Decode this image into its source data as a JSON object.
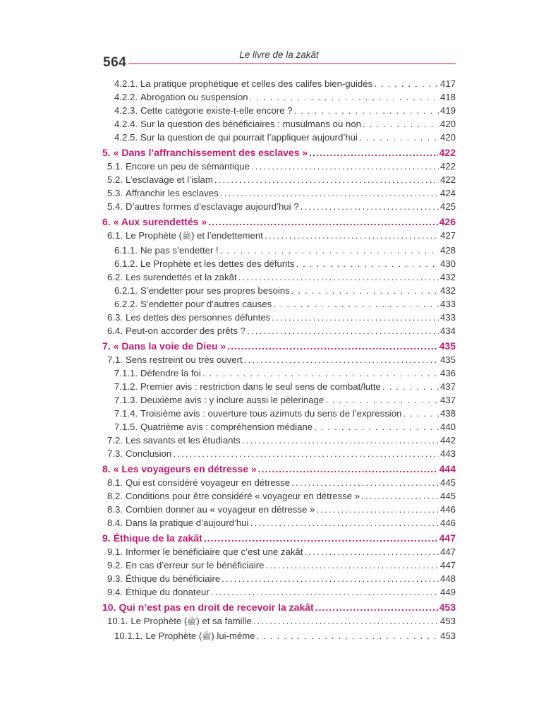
{
  "page": {
    "folio": "564",
    "running_title": "Le livre de la zakât"
  },
  "colors": {
    "accent_pink": "#bf1b70",
    "rule_pink": "#ee86b4",
    "text_dark": "#383838",
    "background": "#ffffff"
  },
  "toc": {
    "entries": [
      {
        "level": 3,
        "number": "4.2.1.",
        "label": "La pratique prophétique et celles des califes bien-guidés",
        "page": "417"
      },
      {
        "level": 3,
        "number": "4.2.2.",
        "label": "Abrogation ou suspension",
        "page": "418"
      },
      {
        "level": 3,
        "number": "4.2.3.",
        "label": "Cette catégorie existe-t-elle encore ?",
        "page": "419"
      },
      {
        "level": 3,
        "number": "4.2.4.",
        "label": "Sur la question des bénéficiaires : musulmans ou non",
        "page": "420"
      },
      {
        "level": 3,
        "number": "4.2.5.",
        "label": "Sur la question de qui pourrait l’appliquer aujourd’hui",
        "page": "420"
      },
      {
        "level": 1,
        "number": "5.",
        "label": "« Dans l’affranchissement des esclaves »",
        "page": "422"
      },
      {
        "level": 2,
        "number": "5.1.",
        "label": "Encore un peu de sémantique",
        "page": "422"
      },
      {
        "level": 2,
        "number": "5.2.",
        "label": "L’esclavage et l’islam",
        "page": "422"
      },
      {
        "level": 2,
        "number": "5.3.",
        "label": "Affranchir les esclaves",
        "page": "424"
      },
      {
        "level": 2,
        "number": "5.4.",
        "label": "D’autres formes d’esclavage aujourd’hui ?",
        "page": "425"
      },
      {
        "level": 1,
        "number": "6.",
        "label": "« Aux surendettés »",
        "page": "426"
      },
      {
        "level": 2,
        "number": "6.1.",
        "label": "Le Prophète (ﷺ) et l’endettement",
        "page": "427"
      },
      {
        "level": 3,
        "number": "6.1.1.",
        "label": "Ne pas s’endetter !",
        "page": "428"
      },
      {
        "level": 3,
        "number": "6.1.2.",
        "label": "Le Prophète et les dettes des défunts",
        "page": "430"
      },
      {
        "level": 2,
        "number": "6.2.",
        "label": "Les surendettés et la zakât",
        "page": "432"
      },
      {
        "level": 3,
        "number": "6.2.1.",
        "label": "S’endetter pour ses propres besoins",
        "page": "432"
      },
      {
        "level": 3,
        "number": "6.2.2.",
        "label": "S’endetter pour d’autres causes",
        "page": "433"
      },
      {
        "level": 2,
        "number": "6.3.",
        "label": "Les dettes des personnes défuntes",
        "page": "433"
      },
      {
        "level": 2,
        "number": "6.4.",
        "label": "Peut-on accorder des prêts ?",
        "page": "434"
      },
      {
        "level": 1,
        "number": "7.",
        "label": "« Dans la voie de Dieu »",
        "page": "435"
      },
      {
        "level": 2,
        "number": "7.1.",
        "label": "Sens restreint ou très ouvert",
        "page": "435"
      },
      {
        "level": 3,
        "number": "7.1.1.",
        "label": "Défendre la foi",
        "page": "436"
      },
      {
        "level": 3,
        "number": "7.1.2.",
        "label": "Premier avis : restriction dans le seul sens de combat/lutte",
        "page": "437"
      },
      {
        "level": 3,
        "number": "7.1.3.",
        "label": "Deuxième avis : y inclure aussi le pèlerinage",
        "page": "437"
      },
      {
        "level": 3,
        "number": "7.1.4.",
        "label": "Troisième avis : ouverture tous azimuts du sens de l’expression",
        "page": "438"
      },
      {
        "level": 3,
        "number": "7.1.5.",
        "label": "Quatrième avis : compréhension médiane",
        "page": "440"
      },
      {
        "level": 2,
        "number": "7.2.",
        "label": "Les savants et les étudiants",
        "page": "442"
      },
      {
        "level": 2,
        "number": "7.3.",
        "label": "Conclusion",
        "page": "443"
      },
      {
        "level": 1,
        "number": "8.",
        "label": "« Les voyageurs en détresse »",
        "page": "444"
      },
      {
        "level": 2,
        "number": "8.1.",
        "label": "Qui est considéré voyageur en détresse",
        "page": "445"
      },
      {
        "level": 2,
        "number": "8.2.",
        "label": "Conditions pour être considéré « voyageur en détresse »",
        "page": "445"
      },
      {
        "level": 2,
        "number": "8.3.",
        "label": "Combien donner au « voyageur en détresse »",
        "page": "446"
      },
      {
        "level": 2,
        "number": "8.4.",
        "label": "Dans la pratique d’aujourd’hui",
        "page": "446"
      },
      {
        "level": 1,
        "number": "9.",
        "label": "Éthique de la zakât",
        "page": "447"
      },
      {
        "level": 2,
        "number": "9.1.",
        "label": "Informer le bénéficiaire que c’est une zakât",
        "page": "447"
      },
      {
        "level": 2,
        "number": "9.2.",
        "label": "En cas d’erreur sur le bénéficiaire",
        "page": "447"
      },
      {
        "level": 2,
        "number": "9.3.",
        "label": "Éthique du bénéficiaire",
        "page": "448"
      },
      {
        "level": 2,
        "number": "9.4.",
        "label": "Éthique du donateur",
        "page": "449"
      },
      {
        "level": 1,
        "number": "10.",
        "label": "Qui n’est pas en droit de recevoir la zakât",
        "page": "453"
      },
      {
        "level": 2,
        "number": "10.1.",
        "label": "Le Prophète (ﷺ) et sa famille",
        "page": "453"
      },
      {
        "level": 3,
        "number": "10.1.1.",
        "label": "Le Prophète (ﷺ) lui-même",
        "page": "453"
      }
    ]
  }
}
